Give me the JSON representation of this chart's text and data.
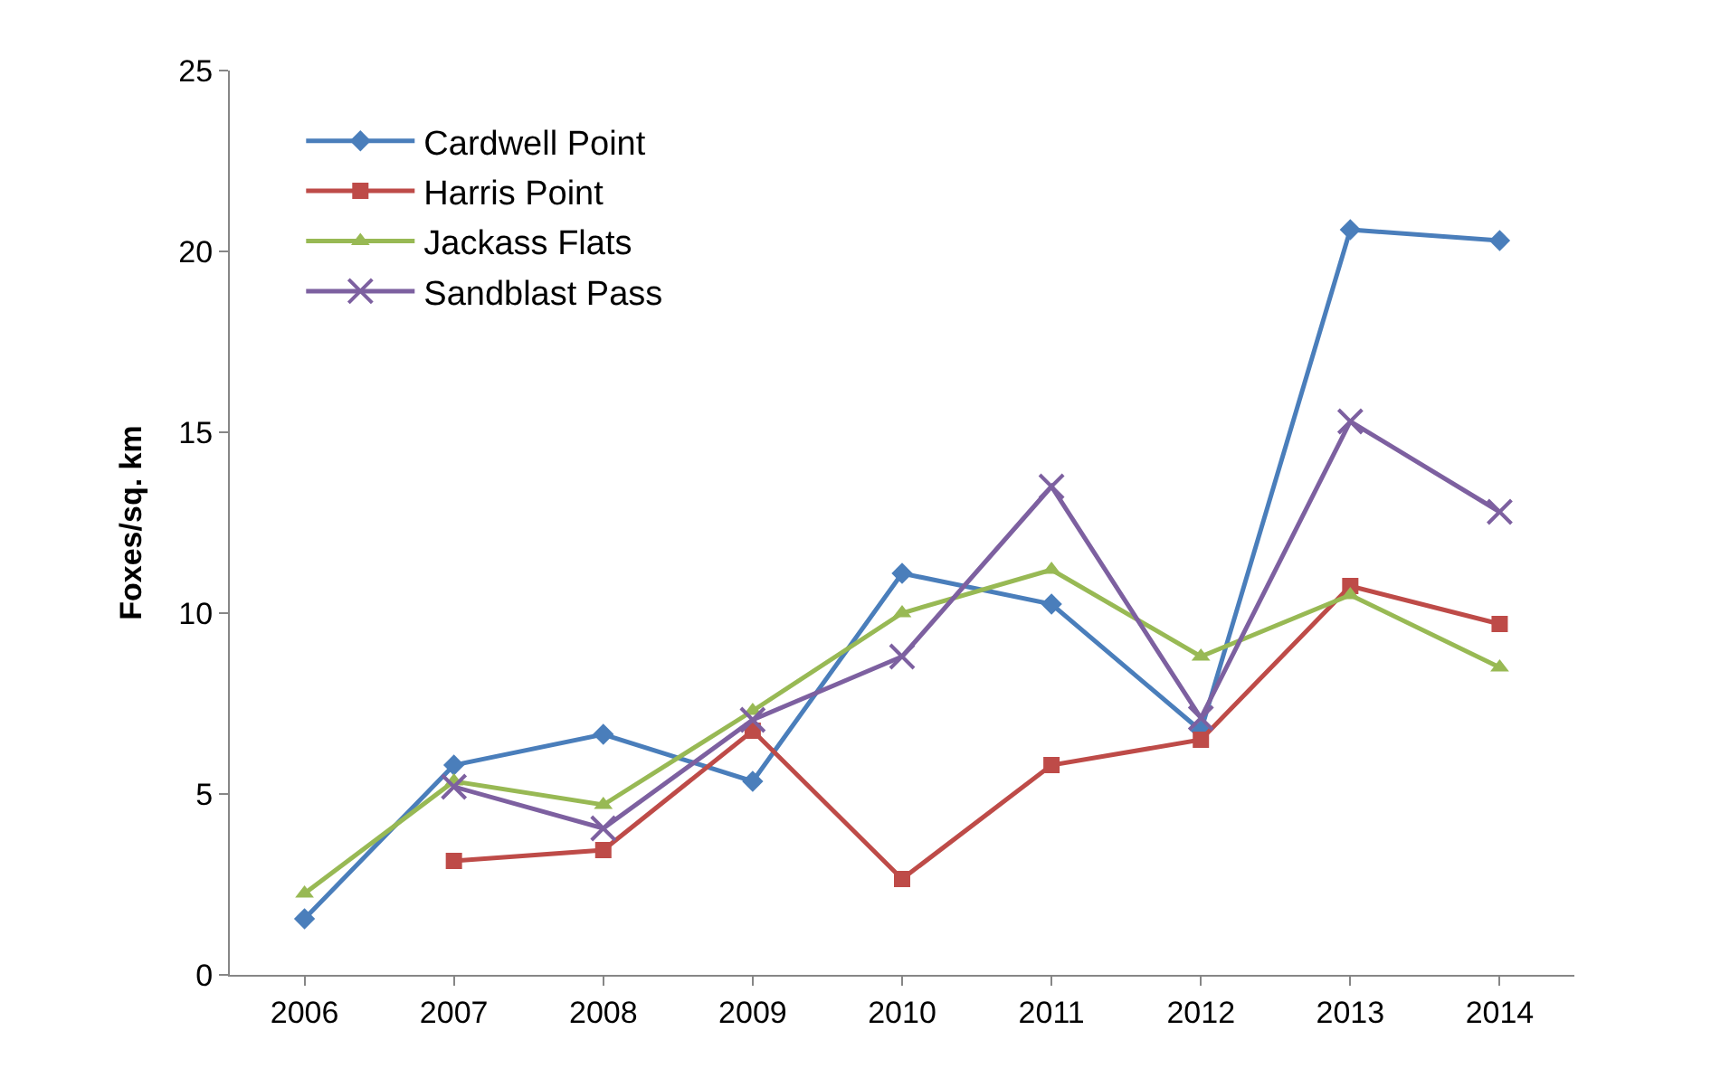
{
  "chart_data": {
    "type": "line",
    "ylabel": "Foxes/sq. km",
    "categories": [
      "2006",
      "2007",
      "2008",
      "2009",
      "2010",
      "2011",
      "2012",
      "2013",
      "2014"
    ],
    "series": [
      {
        "name": "Cardwell Point",
        "color": "#4a7ebb",
        "marker": "diamond",
        "values": [
          1.55,
          5.8,
          6.65,
          5.35,
          11.1,
          10.25,
          6.75,
          20.6,
          20.3
        ]
      },
      {
        "name": "Harris Point",
        "color": "#be4b48",
        "marker": "square",
        "values": [
          null,
          3.15,
          3.45,
          6.75,
          2.65,
          5.8,
          6.5,
          10.75,
          9.7
        ]
      },
      {
        "name": "Jackass Flats",
        "color": "#98b954",
        "marker": "triangle",
        "values": [
          2.25,
          5.35,
          4.7,
          7.3,
          10.0,
          11.2,
          8.8,
          10.5,
          8.5
        ]
      },
      {
        "name": "Sandblast Pass",
        "color": "#7d60a0",
        "marker": "cross",
        "values": [
          null,
          5.2,
          4.05,
          7.05,
          8.8,
          13.5,
          7.1,
          15.3,
          12.8
        ]
      }
    ],
    "ylim": [
      0,
      25
    ],
    "yticks": [
      0,
      5,
      10,
      15,
      20,
      25
    ],
    "grid": false,
    "legend": "top left",
    "line_style": "solid"
  }
}
